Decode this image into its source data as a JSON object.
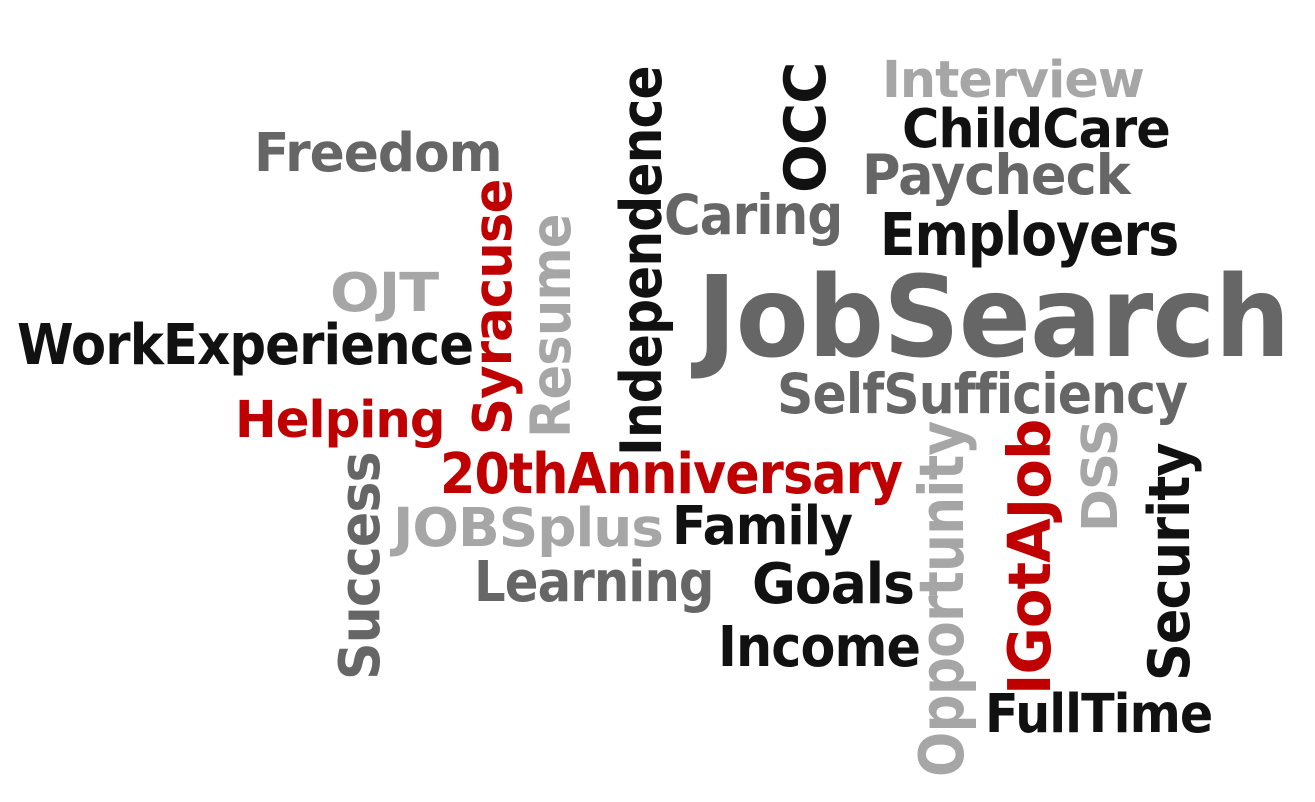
{
  "colors": {
    "black": "#111111",
    "dark_gray": "#666666",
    "light_gray": "#a6a6a6",
    "red": "#c00000",
    "background": "#ffffff"
  },
  "words": [
    {
      "text": "Interview",
      "color": "light_gray",
      "orientation": "horizontal"
    },
    {
      "text": "ChildCare",
      "color": "black",
      "orientation": "horizontal"
    },
    {
      "text": "Freedom",
      "color": "dark_gray",
      "orientation": "horizontal"
    },
    {
      "text": "OCC",
      "color": "black",
      "orientation": "vertical"
    },
    {
      "text": "Paycheck",
      "color": "dark_gray",
      "orientation": "horizontal"
    },
    {
      "text": "Independence",
      "color": "black",
      "orientation": "vertical"
    },
    {
      "text": "Caring",
      "color": "dark_gray",
      "orientation": "horizontal"
    },
    {
      "text": "Employers",
      "color": "black",
      "orientation": "horizontal"
    },
    {
      "text": "Syracuse",
      "color": "red",
      "orientation": "vertical"
    },
    {
      "text": "Resume",
      "color": "light_gray",
      "orientation": "vertical"
    },
    {
      "text": "OJT",
      "color": "light_gray",
      "orientation": "horizontal"
    },
    {
      "text": "JobSearch",
      "color": "dark_gray",
      "orientation": "horizontal"
    },
    {
      "text": "WorkExperience",
      "color": "black",
      "orientation": "horizontal"
    },
    {
      "text": "SelfSufficiency",
      "color": "dark_gray",
      "orientation": "horizontal"
    },
    {
      "text": "Helping",
      "color": "red",
      "orientation": "horizontal"
    },
    {
      "text": "20thAnniversary",
      "color": "red",
      "orientation": "horizontal"
    },
    {
      "text": "Opportunity",
      "color": "light_gray",
      "orientation": "vertical"
    },
    {
      "text": "IGotAJob",
      "color": "red",
      "orientation": "vertical"
    },
    {
      "text": "DSS",
      "color": "light_gray",
      "orientation": "vertical"
    },
    {
      "text": "Security",
      "color": "black",
      "orientation": "vertical"
    },
    {
      "text": "Success",
      "color": "dark_gray",
      "orientation": "vertical"
    },
    {
      "text": "JOBSplus",
      "color": "light_gray",
      "orientation": "horizontal"
    },
    {
      "text": "Family",
      "color": "black",
      "orientation": "horizontal"
    },
    {
      "text": "Learning",
      "color": "dark_gray",
      "orientation": "horizontal"
    },
    {
      "text": "Goals",
      "color": "black",
      "orientation": "horizontal"
    },
    {
      "text": "Income",
      "color": "black",
      "orientation": "horizontal"
    },
    {
      "text": "FullTime",
      "color": "black",
      "orientation": "horizontal"
    }
  ]
}
